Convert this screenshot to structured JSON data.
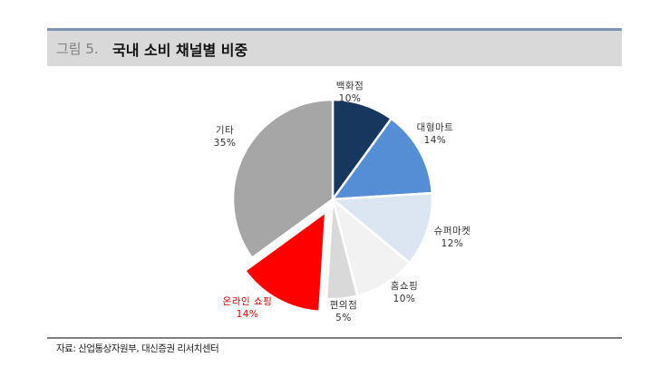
{
  "header": {
    "figure_number": "그림 5.",
    "title": "국내 소비 채널별 비중",
    "accent_color": "#7f93b8",
    "background_color": "#d9d9d9"
  },
  "chart_data": {
    "type": "pie",
    "title": "국내 소비 채널별 비중",
    "start_angle": "12 o'clock, clockwise",
    "exploded": [
      "온라인 쇼핑"
    ],
    "slices": [
      {
        "label": "백화점",
        "value": 10,
        "display": "10%",
        "color": "#17375E"
      },
      {
        "label": "대형마트",
        "value": 14,
        "display": "14%",
        "color": "#558ED5"
      },
      {
        "label": "슈퍼마켓",
        "value": 12,
        "display": "12%",
        "color": "#DCE6F2"
      },
      {
        "label": "홈쇼핑",
        "value": 10,
        "display": "10%",
        "color": "#F2F2F2"
      },
      {
        "label": "편의점",
        "value": 5,
        "display": "5%",
        "color": "#D9D9D9"
      },
      {
        "label": "온라인 쇼핑",
        "value": 14,
        "display": "14%",
        "color": "#FF0000"
      },
      {
        "label": "기타",
        "value": 35,
        "display": "35%",
        "color": "#A6A6A6"
      }
    ],
    "legend": "none (data labels outside slices)"
  },
  "labels": {
    "dept_store": {
      "name": "백화점",
      "pct": "10%"
    },
    "hypermarket": {
      "name": "대형마트",
      "pct": "14%"
    },
    "supermarket": {
      "name": "슈퍼마켓",
      "pct": "12%"
    },
    "home_shopping": {
      "name": "홈쇼핑",
      "pct": "10%"
    },
    "convenience": {
      "name": "편의점",
      "pct": "5%"
    },
    "online": {
      "name": "온라인 쇼핑",
      "pct": "14%"
    },
    "other": {
      "name": "기타",
      "pct": "35%"
    }
  },
  "footer": {
    "source": "자료: 산업통상자원부, 대신증권 리서치센터"
  }
}
